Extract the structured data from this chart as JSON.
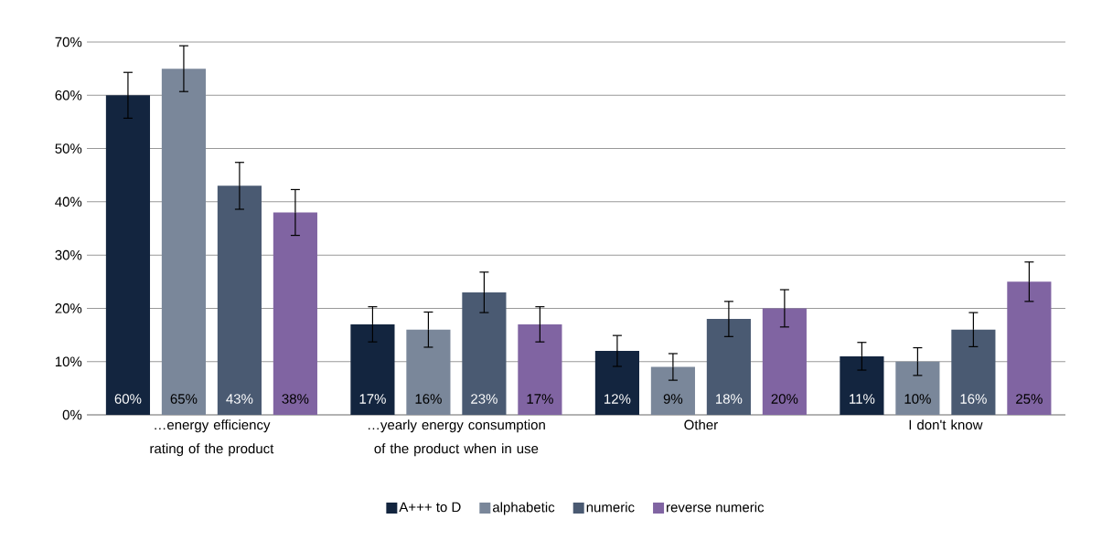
{
  "chart_data": {
    "type": "bar",
    "categories": [
      "…energy efficiency rating of the product",
      "…yearly energy consumption of the product when in use",
      "Other",
      "I don't know"
    ],
    "series": [
      {
        "name": "A+++ to D",
        "color": "#13253f",
        "values": [
          60,
          17,
          12,
          11
        ],
        "errors": [
          4.3,
          3.3,
          2.9,
          2.6
        ],
        "value_labels": [
          "60%",
          "17%",
          "12%",
          "11%"
        ]
      },
      {
        "name": "alphabetic",
        "color": "#7a879a",
        "values": [
          65,
          16,
          9,
          10
        ],
        "errors": [
          4.3,
          3.3,
          2.5,
          2.6
        ],
        "value_labels": [
          "65%",
          "16%",
          "9%",
          "10%"
        ]
      },
      {
        "name": "numeric",
        "color": "#4a5a72",
        "values": [
          43,
          23,
          18,
          16
        ],
        "errors": [
          4.4,
          3.8,
          3.3,
          3.2
        ],
        "value_labels": [
          "43%",
          "23%",
          "18%",
          "16%"
        ]
      },
      {
        "name": "reverse numeric",
        "color": "#8064a2",
        "values": [
          38,
          17,
          20,
          25
        ],
        "errors": [
          4.3,
          3.3,
          3.5,
          3.7
        ],
        "value_labels": [
          "38%",
          "17%",
          "20%",
          "25%"
        ]
      }
    ],
    "ylim": [
      0,
      70
    ],
    "yticks": [
      {
        "value": 0,
        "label": "0%"
      },
      {
        "value": 10,
        "label": "10%"
      },
      {
        "value": 20,
        "label": "20%"
      },
      {
        "value": 30,
        "label": "30%"
      },
      {
        "value": 40,
        "label": "40%"
      },
      {
        "value": 50,
        "label": "50%"
      },
      {
        "value": 60,
        "label": "60%"
      },
      {
        "value": 70,
        "label": "70%"
      }
    ],
    "grid": "y",
    "legend": "bottom"
  }
}
